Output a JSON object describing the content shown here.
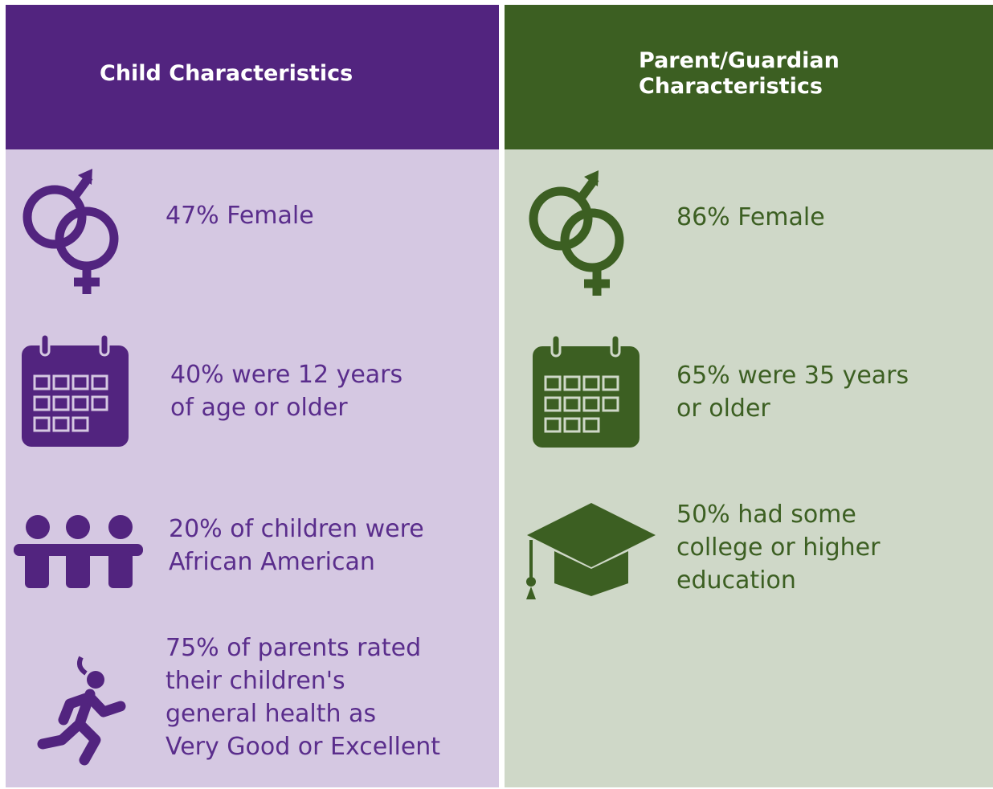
{
  "columns": [
    {
      "title": [
        "Child Characteristics"
      ],
      "items": [
        {
          "lines": [
            "47% Female"
          ]
        },
        {
          "lines": [
            "40% were 12 years",
            "of age or older"
          ]
        },
        {
          "lines": [
            "20% of children were",
            "African American"
          ]
        },
        {
          "lines": [
            "75% of parents rated",
            "their children's",
            "general health as",
            "Very Good or Excellent"
          ]
        }
      ]
    },
    {
      "title": [
        "Parent/Guardian",
        "Characteristics"
      ],
      "items": [
        {
          "lines": [
            "86% Female"
          ]
        },
        {
          "lines": [
            "65% were 35 years",
            "or older"
          ]
        },
        {
          "lines": [
            "50% had some",
            "college or higher",
            "education"
          ]
        }
      ]
    }
  ]
}
